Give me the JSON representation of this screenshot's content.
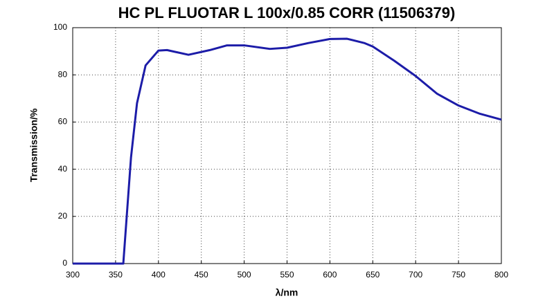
{
  "chart_data": {
    "type": "line",
    "title": "HC PL FLUOTAR L 100x/0.85 CORR (11506379)",
    "x_label": "λ/nm",
    "y_label": "Transmission/%",
    "x": [
      300,
      350,
      359,
      363,
      368,
      375,
      385,
      400,
      410,
      435,
      460,
      480,
      500,
      530,
      550,
      575,
      600,
      620,
      640,
      650,
      675,
      700,
      725,
      750,
      775,
      800
    ],
    "series": [
      {
        "name": "Transmission",
        "color": "#1c1ca8",
        "values": [
          0,
          0,
          0,
          20,
          45,
          68,
          84,
          90.3,
          90.5,
          88.5,
          90.5,
          92.5,
          92.5,
          91,
          91.5,
          93.5,
          95.2,
          95.3,
          93.5,
          92,
          86,
          79.5,
          72,
          67,
          63.5,
          61
        ]
      }
    ],
    "xlim": [
      300,
      800
    ],
    "ylim": [
      0,
      100
    ],
    "xticks": [
      300,
      350,
      400,
      450,
      500,
      550,
      600,
      650,
      700,
      750,
      800
    ],
    "yticks": [
      0,
      20,
      40,
      60,
      80,
      100
    ],
    "grid": true
  }
}
